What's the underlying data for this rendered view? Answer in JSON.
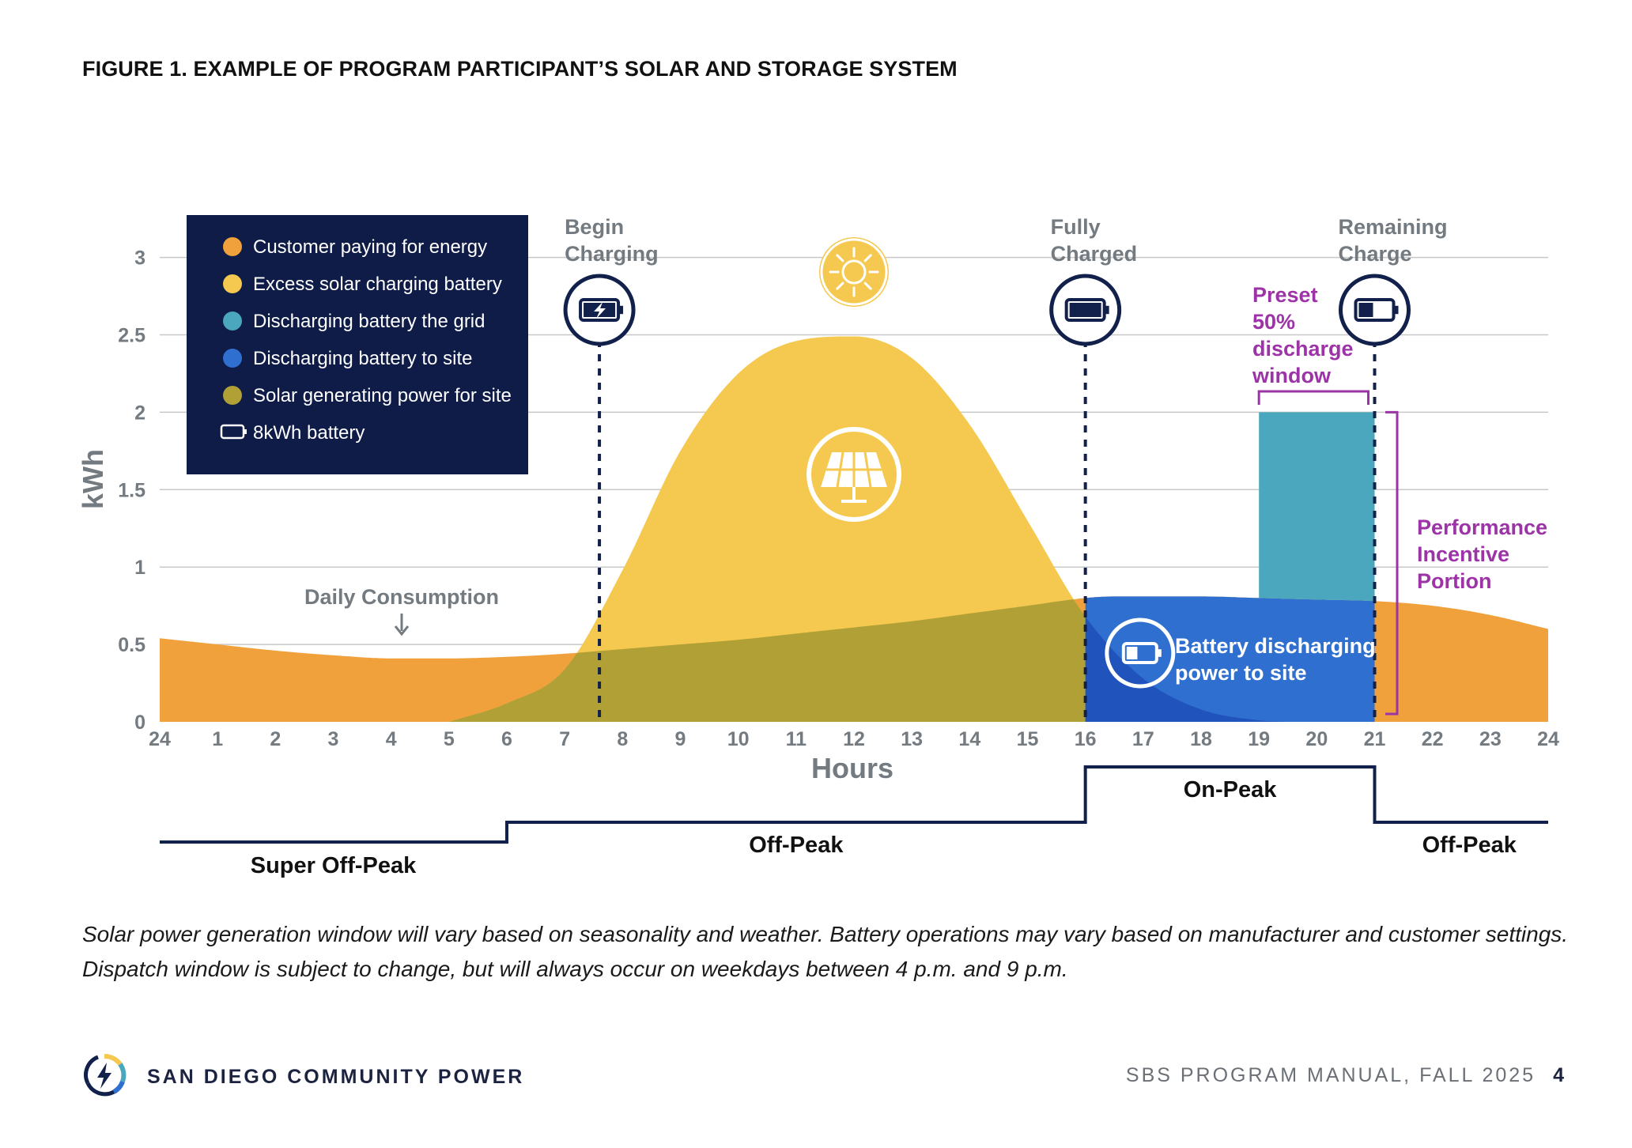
{
  "figure": {
    "title": "FIGURE 1. EXAMPLE OF PROGRAM PARTICIPANT’S SOLAR AND STORAGE SYSTEM"
  },
  "chart_data": {
    "type": "area",
    "title": "",
    "xlabel": "Hours",
    "ylabel": "kWh",
    "xlim": [
      0,
      24
    ],
    "ylim": [
      0,
      3.2
    ],
    "grid": true,
    "legend_position": "top-left",
    "x_ticks": [
      {
        "x": 0,
        "label": "24"
      },
      {
        "x": 1,
        "label": "1"
      },
      {
        "x": 2,
        "label": "2"
      },
      {
        "x": 3,
        "label": "3"
      },
      {
        "x": 4,
        "label": "4"
      },
      {
        "x": 5,
        "label": "5"
      },
      {
        "x": 6,
        "label": "6"
      },
      {
        "x": 7,
        "label": "7"
      },
      {
        "x": 8,
        "label": "8"
      },
      {
        "x": 9,
        "label": "9"
      },
      {
        "x": 10,
        "label": "10"
      },
      {
        "x": 11,
        "label": "11"
      },
      {
        "x": 12,
        "label": "12"
      },
      {
        "x": 13,
        "label": "13"
      },
      {
        "x": 14,
        "label": "14"
      },
      {
        "x": 15,
        "label": "15"
      },
      {
        "x": 16,
        "label": "16"
      },
      {
        "x": 17,
        "label": "17"
      },
      {
        "x": 18,
        "label": "18"
      },
      {
        "x": 19,
        "label": "19"
      },
      {
        "x": 20,
        "label": "20"
      },
      {
        "x": 21,
        "label": "21"
      },
      {
        "x": 22,
        "label": "22"
      },
      {
        "x": 23,
        "label": "23"
      },
      {
        "x": 24,
        "label": "24"
      }
    ],
    "y_ticks": [
      {
        "y": 0,
        "label": "0"
      },
      {
        "y": 0.5,
        "label": "0.5"
      },
      {
        "y": 1,
        "label": "1"
      },
      {
        "y": 1.5,
        "label": "1.5"
      },
      {
        "y": 2,
        "label": "2"
      },
      {
        "y": 2.5,
        "label": "2.5"
      },
      {
        "y": 3,
        "label": "3"
      }
    ],
    "legend": [
      {
        "label": "Customer paying for energy",
        "color": "#f0a13c",
        "marker": "dot"
      },
      {
        "label": "Excess solar charging battery",
        "color": "#f5c84f",
        "marker": "dot"
      },
      {
        "label": "Discharging battery the grid",
        "color": "#4aa7bd",
        "marker": "dot"
      },
      {
        "label": "Discharging battery to site",
        "color": "#2f6fd0",
        "marker": "dot"
      },
      {
        "label": "Solar generating power for site",
        "color": "#b0a035",
        "marker": "dot"
      },
      {
        "label": "8kWh battery",
        "color": "#ffffff",
        "marker": "battery"
      }
    ],
    "series": [
      {
        "name": "Daily Consumption",
        "color": "#f0a13c",
        "x": [
          0,
          1,
          2,
          3,
          4,
          4.5,
          5,
          6,
          7,
          8,
          9,
          10,
          11,
          12,
          13,
          14,
          15,
          16,
          16.5,
          17,
          18,
          19,
          20,
          21,
          22,
          23,
          24
        ],
        "values": [
          0.54,
          0.5,
          0.46,
          0.43,
          0.41,
          0.41,
          0.41,
          0.42,
          0.44,
          0.47,
          0.5,
          0.53,
          0.57,
          0.61,
          0.65,
          0.7,
          0.75,
          0.8,
          0.81,
          0.81,
          0.81,
          0.8,
          0.79,
          0.78,
          0.75,
          0.69,
          0.6
        ]
      },
      {
        "name": "Solar generation",
        "color": "#f5c84f",
        "x": [
          5,
          6,
          7,
          8,
          9,
          10,
          11,
          12,
          13,
          14,
          15,
          16,
          17,
          18,
          19,
          19.5
        ],
        "values": [
          0.0,
          0.12,
          0.34,
          0.98,
          1.75,
          2.25,
          2.46,
          2.49,
          2.35,
          1.92,
          1.3,
          0.68,
          0.28,
          0.08,
          0.01,
          0.0
        ]
      }
    ],
    "bars": [
      {
        "name": "Discharging battery the grid",
        "x_start": 19,
        "x_end": 21,
        "value": 2.0,
        "color": "#4aa7bd"
      }
    ],
    "periods": [
      {
        "label": "Super Off-Peak",
        "start": 0,
        "end": 6,
        "level": 0
      },
      {
        "label": "Off-Peak",
        "start": 6,
        "end": 16,
        "level": 1
      },
      {
        "label": "On-Peak",
        "start": 16,
        "end": 21,
        "level": 2
      },
      {
        "label": "Off-Peak",
        "start": 21,
        "end": 24,
        "level": 1
      }
    ],
    "markers": [
      {
        "x": 7.6,
        "label_line1": "Begin",
        "label_line2": "Charging",
        "battery": "charging"
      },
      {
        "x": 16,
        "label_line1": "Fully",
        "label_line2": "Charged",
        "battery": "full"
      },
      {
        "x": 21,
        "label_line1": "Remaining",
        "label_line2": "Charge",
        "battery": "half"
      }
    ],
    "annotations": {
      "daily_consumption": "Daily Consumption",
      "battery_discharging_line1": "Battery discharging",
      "battery_discharging_line2": "power to site",
      "preset_window": [
        "Preset",
        "50%",
        "discharge",
        "window"
      ],
      "performance_incentive": [
        "Performance",
        "Incentive",
        "Portion"
      ]
    },
    "colors": {
      "grid": "#c8c8c8",
      "axis_text": "#737a80",
      "legend_bg": "#0e1c47",
      "navy": "#12214b",
      "purple": "#9c33a6",
      "sun": "#f5c84f"
    }
  },
  "caption": {
    "line1": "Solar power generation window will vary based on seasonality and weather. Battery operations may vary based on manufacturer and customer settings.",
    "line2": "Dispatch window is subject to change, but will always occur on weekdays between 4 p.m. and 9 p.m."
  },
  "footer": {
    "org": "SAN DIEGO COMMUNITY POWER",
    "manual": "SBS PROGRAM MANUAL, FALL 2025",
    "page": "4"
  }
}
